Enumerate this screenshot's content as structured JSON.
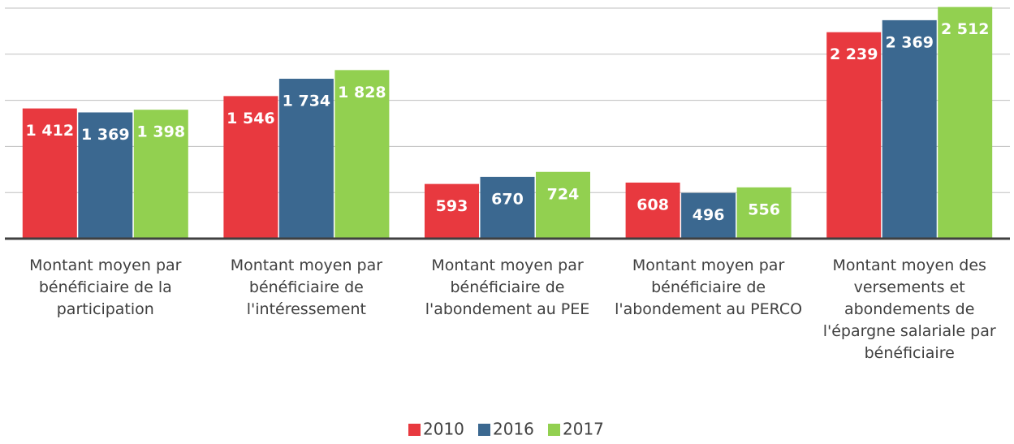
{
  "chart_data": {
    "type": "bar",
    "categories": [
      "Montant moyen par bénéficiaire de la participation",
      "Montant moyen par bénéficiaire de l'intéressement",
      "Montant moyen par bénéficiaire de l'abondement au PEE",
      "Montant moyen par bénéficiaire de l'abondement au PERCO",
      "Montant moyen des versements et abondements de l'épargne salariale par bénéficiaire"
    ],
    "series": [
      {
        "name": "2010",
        "color": "#e8393f",
        "values": [
          1412,
          1546,
          593,
          608,
          2239
        ],
        "value_labels": [
          "1 412",
          "1 546",
          "593",
          "608",
          "2 239"
        ]
      },
      {
        "name": "2016",
        "color": "#3b6890",
        "values": [
          1369,
          1734,
          670,
          496,
          2369
        ],
        "value_labels": [
          "1 369",
          "1 734",
          "670",
          "496",
          "2 369"
        ]
      },
      {
        "name": "2017",
        "color": "#92d050",
        "values": [
          1398,
          1828,
          724,
          556,
          2512
        ],
        "value_labels": [
          "1 398",
          "1 828",
          "724",
          "556",
          "2 512"
        ]
      }
    ],
    "ylim": [
      0,
      2500
    ],
    "yticks": [
      0,
      500,
      1000,
      1500,
      2000,
      2500
    ],
    "grid": true,
    "legend": "bottom"
  }
}
